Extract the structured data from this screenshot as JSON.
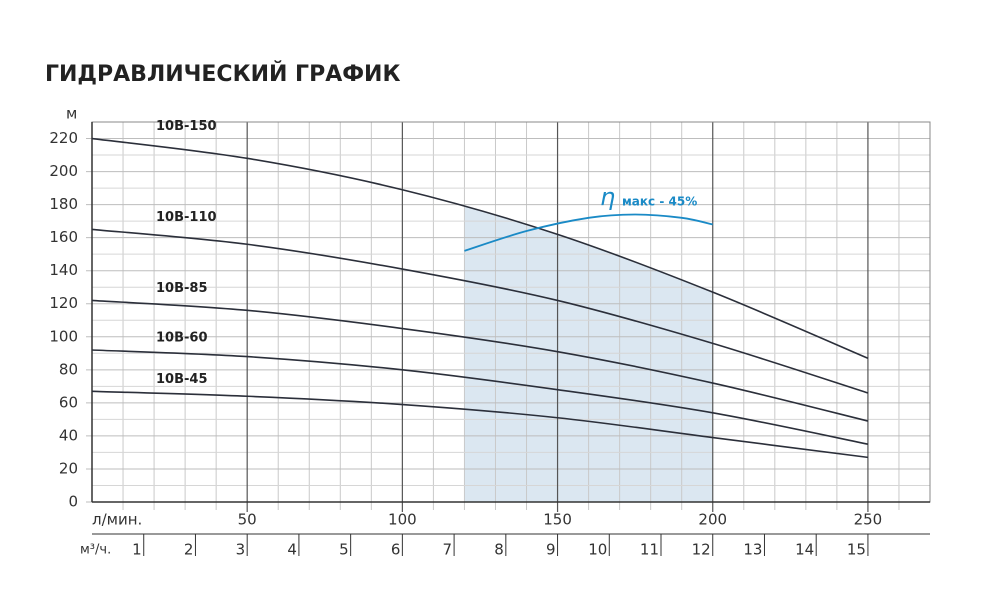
{
  "chart_data": {
    "type": "line",
    "title": "ГИДРАВЛИЧЕСКИЙ ГРАФИК",
    "y_label": "м",
    "x_label": "л/мин.",
    "x2_label": "м³/ч.",
    "x": [
      0,
      50,
      100,
      150,
      200,
      250
    ],
    "series": [
      {
        "name": "10В-150",
        "color": "#2b2f3a",
        "values": [
          220,
          208,
          189,
          162,
          127,
          87
        ]
      },
      {
        "name": "10В-110",
        "color": "#2b2f3a",
        "values": [
          165,
          156,
          141,
          122,
          96,
          66
        ]
      },
      {
        "name": "10В-85",
        "color": "#2b2f3a",
        "values": [
          122,
          116,
          105,
          91,
          72,
          49
        ]
      },
      {
        "name": "10В-60",
        "color": "#2b2f3a",
        "values": [
          92,
          88,
          80,
          68,
          54,
          35
        ]
      },
      {
        "name": "10В-45",
        "color": "#2b2f3a",
        "values": [
          67,
          64,
          59,
          51,
          39,
          27
        ]
      }
    ],
    "efficiency_curve": {
      "symbol": "η",
      "label": "макс - 45%",
      "color": "#1a8ac6",
      "x": [
        120,
        140,
        160,
        175,
        190,
        200
      ],
      "values": [
        152,
        164,
        172,
        174,
        172,
        168
      ]
    },
    "operating_range": {
      "x": [
        120,
        200
      ],
      "color": "#dbe7f1"
    },
    "xlim": [
      0,
      270
    ],
    "ylim": [
      0,
      230
    ],
    "xticks": [
      50,
      100,
      150,
      200,
      250
    ],
    "yticks": [
      0,
      20,
      40,
      60,
      80,
      100,
      120,
      140,
      160,
      180,
      200,
      220
    ],
    "xminor": [
      10,
      20,
      30,
      40,
      60,
      70,
      80,
      90,
      110,
      120,
      130,
      140,
      160,
      170,
      180,
      190,
      210,
      220,
      230,
      240,
      260
    ],
    "yminor": [
      10,
      30,
      50,
      70,
      90,
      110,
      130,
      150,
      170,
      190,
      210
    ],
    "x2lim": [
      0,
      16.2
    ],
    "x2ticks": [
      1,
      2,
      3,
      4,
      5,
      6,
      7,
      8,
      9,
      10,
      11,
      12,
      13,
      14,
      15
    ],
    "grid": true
  }
}
